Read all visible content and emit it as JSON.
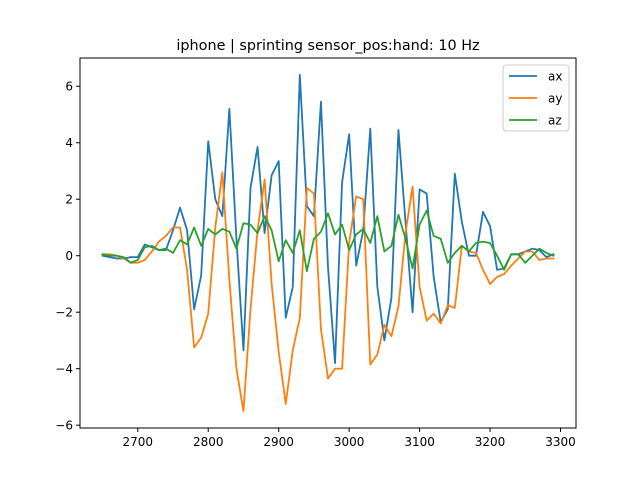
{
  "chart_data": {
    "type": "line",
    "title": "iphone | sprinting sensor_pos:hand: 10 Hz",
    "xlabel": "",
    "ylabel": "",
    "xlim": [
      2618,
      3322
    ],
    "ylim": [
      -6.1,
      7.0
    ],
    "xticks": [
      2700,
      2800,
      2900,
      3000,
      3100,
      3200,
      3300
    ],
    "yticks": [
      -6,
      -4,
      -2,
      0,
      2,
      4,
      6
    ],
    "legend_position": "top-right",
    "grid": false,
    "x": [
      2650,
      2660,
      2670,
      2680,
      2690,
      2700,
      2710,
      2720,
      2730,
      2740,
      2750,
      2760,
      2770,
      2780,
      2790,
      2800,
      2810,
      2820,
      2830,
      2840,
      2850,
      2860,
      2870,
      2880,
      2890,
      2900,
      2910,
      2920,
      2930,
      2940,
      2950,
      2960,
      2970,
      2980,
      2990,
      3000,
      3010,
      3020,
      3030,
      3040,
      3050,
      3060,
      3070,
      3080,
      3090,
      3100,
      3110,
      3120,
      3130,
      3140,
      3150,
      3160,
      3170,
      3180,
      3190,
      3200,
      3210,
      3220,
      3230,
      3240,
      3250,
      3260,
      3270,
      3280,
      3290
    ],
    "series": [
      {
        "name": "ax",
        "color": "#1f77b4",
        "values": [
          0.0,
          -0.05,
          -0.1,
          -0.1,
          -0.05,
          -0.05,
          0.4,
          0.3,
          0.2,
          0.2,
          0.9,
          1.7,
          0.9,
          -1.9,
          -0.7,
          4.05,
          2.0,
          1.4,
          5.2,
          0.6,
          -3.35,
          2.4,
          3.85,
          0.8,
          2.85,
          3.35,
          -2.2,
          -1.1,
          6.4,
          1.75,
          1.4,
          5.45,
          -0.4,
          -3.8,
          2.6,
          4.3,
          -0.35,
          0.9,
          4.5,
          -1.1,
          -3.0,
          -1.5,
          4.45,
          1.2,
          -2.0,
          2.35,
          2.2,
          -0.75,
          -2.35,
          -1.9,
          2.9,
          1.2,
          0.0,
          0.0,
          1.55,
          1.05,
          -0.5,
          -0.45,
          0.05,
          0.05,
          0.15,
          0.25,
          0.2,
          -0.05,
          0.05
        ]
      },
      {
        "name": "ay",
        "color": "#ff7f0e",
        "values": [
          0.05,
          0.05,
          0.0,
          -0.1,
          -0.25,
          -0.25,
          -0.15,
          0.15,
          0.5,
          0.7,
          1.0,
          1.0,
          -0.5,
          -3.25,
          -2.9,
          -2.05,
          1.0,
          2.95,
          -0.85,
          -4.0,
          -5.5,
          -1.9,
          0.9,
          2.7,
          -1.0,
          -3.4,
          -5.25,
          -3.35,
          -2.2,
          2.4,
          2.2,
          -2.6,
          -4.35,
          -4.0,
          -4.0,
          0.45,
          2.1,
          2.0,
          -3.85,
          -3.5,
          -2.45,
          -2.85,
          -1.8,
          0.8,
          2.45,
          -1.1,
          -2.3,
          -2.05,
          -2.4,
          -1.75,
          -1.85,
          0.35,
          0.15,
          0.1,
          -0.5,
          -1.0,
          -0.75,
          -0.65,
          -0.35,
          -0.1,
          0.15,
          0.15,
          -0.15,
          -0.1,
          -0.1
        ]
      },
      {
        "name": "az",
        "color": "#2ca02c",
        "values": [
          0.05,
          0.0,
          0.0,
          -0.05,
          -0.25,
          -0.15,
          0.3,
          0.35,
          0.2,
          0.25,
          0.1,
          0.55,
          0.4,
          1.0,
          0.35,
          0.95,
          0.75,
          0.95,
          0.85,
          0.25,
          1.15,
          1.1,
          0.8,
          1.4,
          0.9,
          -0.2,
          0.55,
          0.1,
          0.9,
          -0.55,
          0.6,
          0.85,
          1.5,
          0.75,
          1.1,
          0.2,
          0.75,
          0.95,
          0.45,
          1.4,
          0.15,
          0.35,
          1.45,
          0.6,
          -0.45,
          1.1,
          1.6,
          0.7,
          0.6,
          -0.25,
          0.1,
          0.35,
          0.15,
          0.45,
          0.5,
          0.45,
          0.0,
          -0.5,
          0.05,
          0.05,
          -0.25,
          0.0,
          0.25,
          0.1,
          0.0
        ]
      }
    ]
  }
}
